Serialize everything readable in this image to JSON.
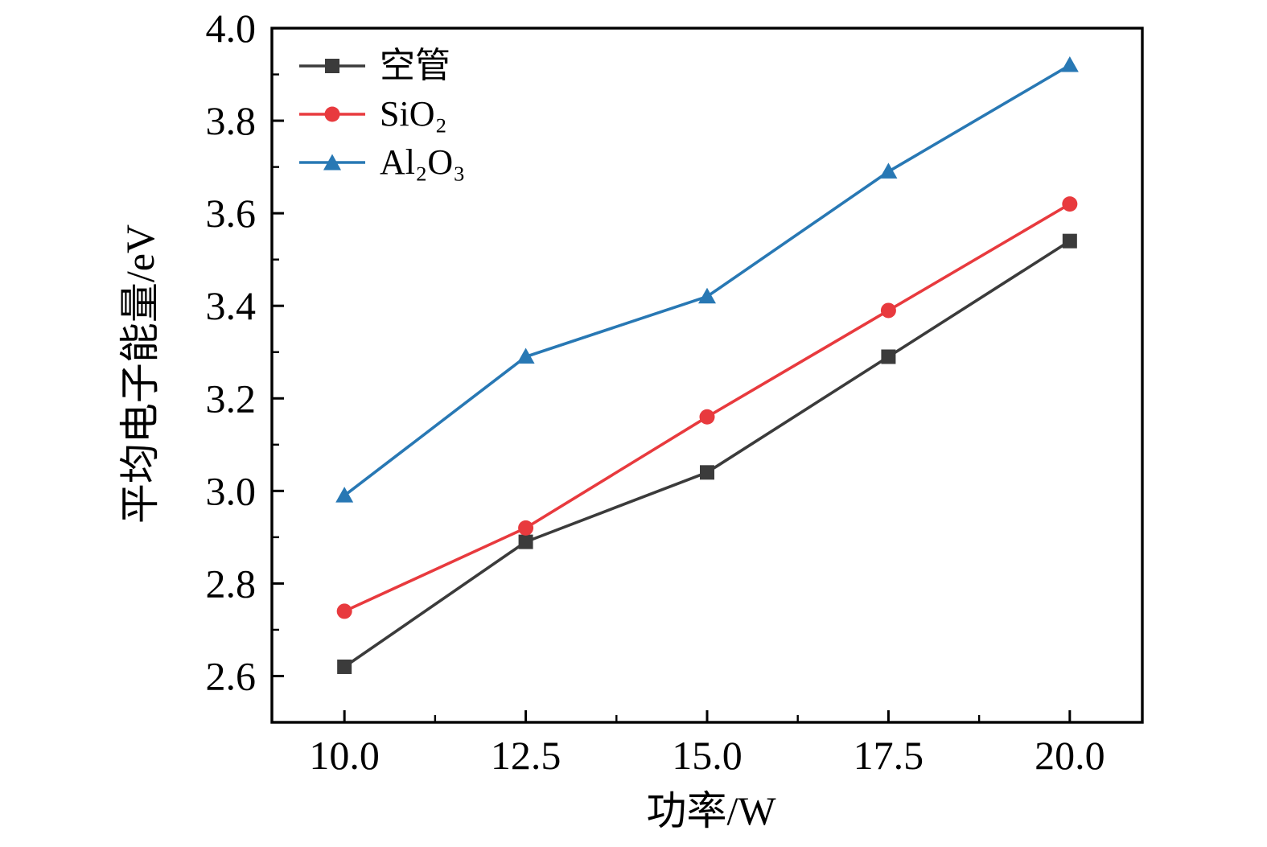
{
  "figure": {
    "background": "#ffffff",
    "axis_color": "#000000"
  },
  "chart_data": {
    "type": "line",
    "title": "",
    "xlabel": "功率/W",
    "ylabel": "平均电子能量/eV",
    "xlim": [
      9,
      21
    ],
    "ylim": [
      2.5,
      4.0
    ],
    "grid": false,
    "legend_position": "upper-left-inside",
    "x": [
      10.0,
      12.5,
      15.0,
      17.5,
      20.0
    ],
    "x_tick_labels": [
      "10.0",
      "12.5",
      "15.0",
      "17.5",
      "20.0"
    ],
    "x_minor_ticks": [
      11.25,
      13.75,
      16.25,
      18.75
    ],
    "y_major_ticks": [
      2.6,
      2.8,
      3.0,
      3.2,
      3.4,
      3.6,
      3.8,
      4.0
    ],
    "y_tick_labels": [
      "2.6",
      "2.8",
      "3.0",
      "3.2",
      "3.4",
      "3.6",
      "3.8",
      "4.0"
    ],
    "y_minor_ticks": [
      2.7,
      2.9,
      3.1,
      3.3,
      3.5,
      3.7,
      3.9
    ],
    "series": [
      {
        "name": "空管",
        "marker": "square",
        "color": "#3B3B3B",
        "values": [
          2.62,
          2.89,
          3.04,
          3.29,
          3.54
        ]
      },
      {
        "name": "SiO₂",
        "marker": "circle",
        "color": "#E83A3E",
        "values": [
          2.74,
          2.92,
          3.16,
          3.39,
          3.62
        ]
      },
      {
        "name": "Al₂O₃",
        "marker": "triangle",
        "color": "#2878B4",
        "values": [
          2.99,
          3.29,
          3.42,
          3.69,
          3.92
        ]
      }
    ]
  }
}
